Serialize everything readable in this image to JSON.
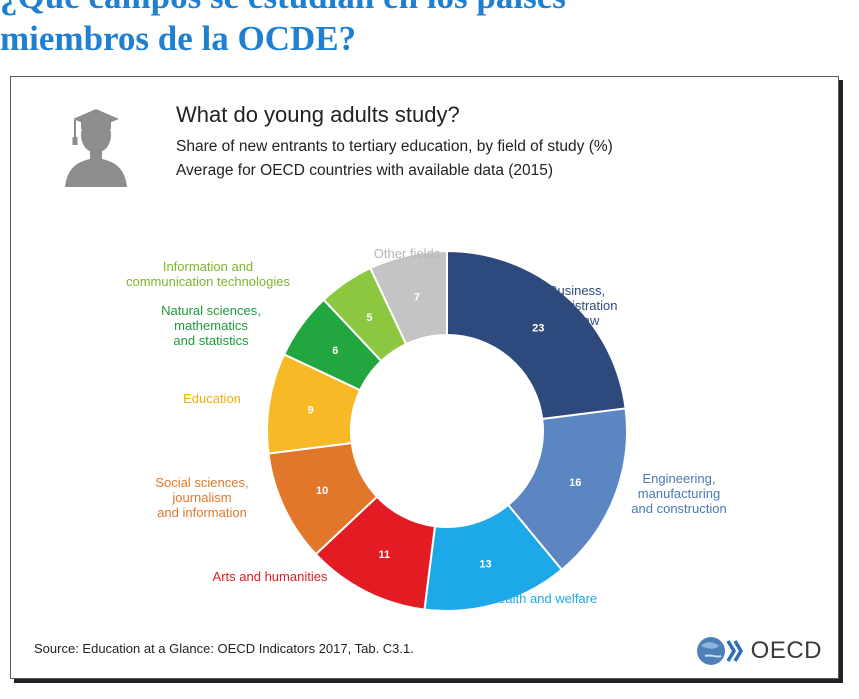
{
  "page": {
    "heading_line1": "¿Qué campos se estudian en los países",
    "heading_line2": "miembros de la OCDE?"
  },
  "card": {
    "source": "Source: Education at a Glance: OECD Indicators 2017, Tab. C3.1.",
    "logo_text": "OECD",
    "icon": "graduate-silhouette-icon"
  },
  "chart_data": {
    "type": "donut",
    "title": "What do young adults study?",
    "subtitle": "Share of new entrants to tertiary education, by field of study (%)",
    "subtitle2": "Average for OECD countries with available data (2015)",
    "start_angle_deg": 0,
    "direction": "clockwise",
    "slices": [
      {
        "label": "Business, administration and law",
        "label_lines": [
          "Business,",
          "administration",
          "and law"
        ],
        "value": 23,
        "color": "#2e4a7d",
        "label_color": "#2e4a7d"
      },
      {
        "label": "Engineering, manufacturing and construction",
        "label_lines": [
          "Engineering,",
          "manufacturing",
          "and construction"
        ],
        "value": 16,
        "color": "#5b86c2",
        "label_color": "#4a78b5"
      },
      {
        "label": "Health and welfare",
        "label_lines": [
          "Health and welfare"
        ],
        "value": 13,
        "color": "#1da9e8",
        "label_color": "#1da9e8"
      },
      {
        "label": "Arts and humanities",
        "label_lines": [
          "Arts and humanities"
        ],
        "value": 11,
        "color": "#e31c23",
        "label_color": "#e31c23"
      },
      {
        "label": "Social sciences, journalism and information",
        "label_lines": [
          "Social sciences,",
          "journalism",
          "and information"
        ],
        "value": 10,
        "color": "#e2772b",
        "label_color": "#e2772b"
      },
      {
        "label": "Education",
        "label_lines": [
          "Education"
        ],
        "value": 9,
        "color": "#f7b926",
        "label_color": "#efae0e"
      },
      {
        "label": "Natural sciences, mathematics and statistics",
        "label_lines": [
          "Natural sciences,",
          "mathematics",
          "and statistics"
        ],
        "value": 6,
        "color": "#21a640",
        "label_color": "#1f9a3a"
      },
      {
        "label": "Information and communication technologies",
        "label_lines": [
          "Information and",
          "communication technologies"
        ],
        "value": 5,
        "color": "#8dc63f",
        "label_color": "#7fb52e"
      },
      {
        "label": "Other fields",
        "label_lines": [
          "Other fields"
        ],
        "value": 7,
        "color": "#c4c4c4",
        "label_color": "#b5b5b5"
      }
    ]
  }
}
